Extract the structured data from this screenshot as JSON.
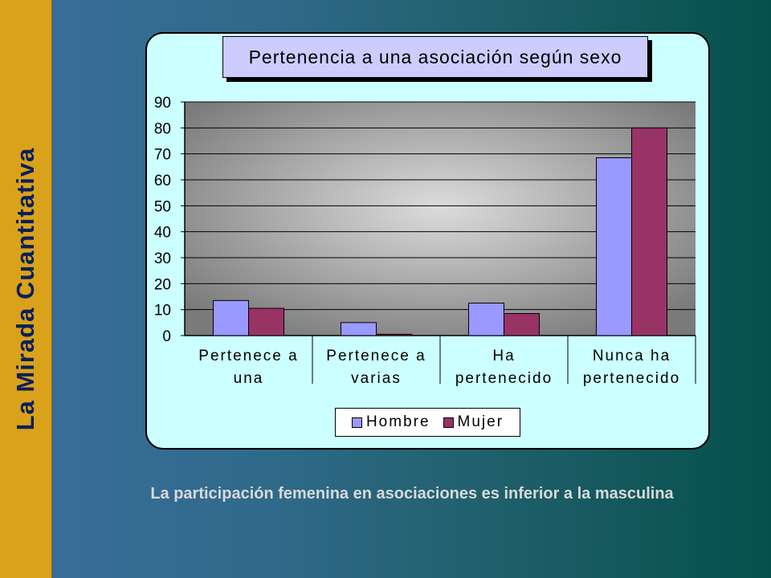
{
  "sidebar": {
    "title": "La Mirada Cuantitativa"
  },
  "caption": "La participación femenina en asociaciones es inferior a la masculina",
  "chart_data": {
    "type": "bar",
    "title": "Pertenencia a una asociación según sexo",
    "categories": [
      [
        "Pertenece a",
        "una"
      ],
      [
        "Pertenece a",
        "varias"
      ],
      [
        "Ha",
        "pertenecido"
      ],
      [
        "Nunca ha",
        "pertenecido"
      ]
    ],
    "series": [
      {
        "name": "Hombre",
        "values": [
          13.5,
          5,
          12.5,
          68.5
        ],
        "color": "#9999ff"
      },
      {
        "name": "Mujer",
        "values": [
          10.5,
          0.5,
          8.5,
          80
        ],
        "color": "#993366"
      }
    ],
    "ylim": [
      0,
      90
    ],
    "yticks": [
      0,
      10,
      20,
      30,
      40,
      50,
      60,
      70,
      80,
      90
    ],
    "grid": true,
    "legend_position": "bottom"
  }
}
